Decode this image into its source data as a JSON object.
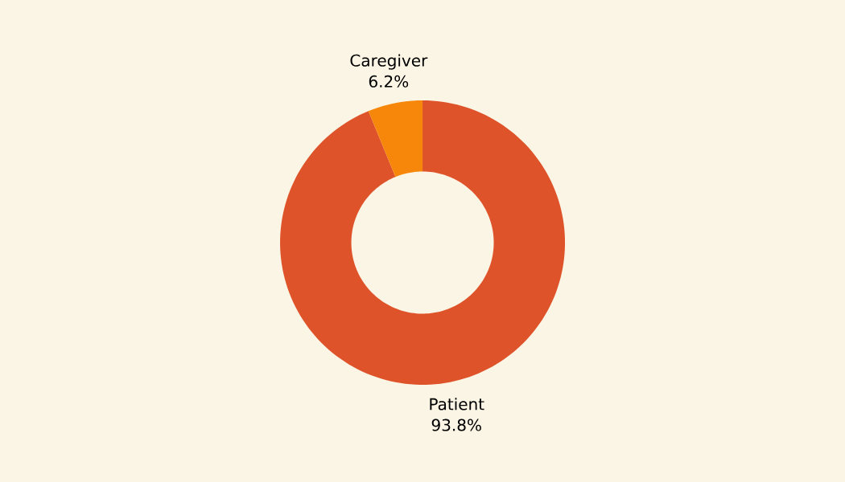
{
  "chart_data": {
    "type": "donut",
    "categories": [
      "Patient",
      "Caregiver"
    ],
    "values": [
      93.8,
      6.2
    ],
    "value_labels": [
      "93.8%",
      "6.2%"
    ],
    "colors": [
      "#df532a",
      "#f7870a"
    ]
  }
}
